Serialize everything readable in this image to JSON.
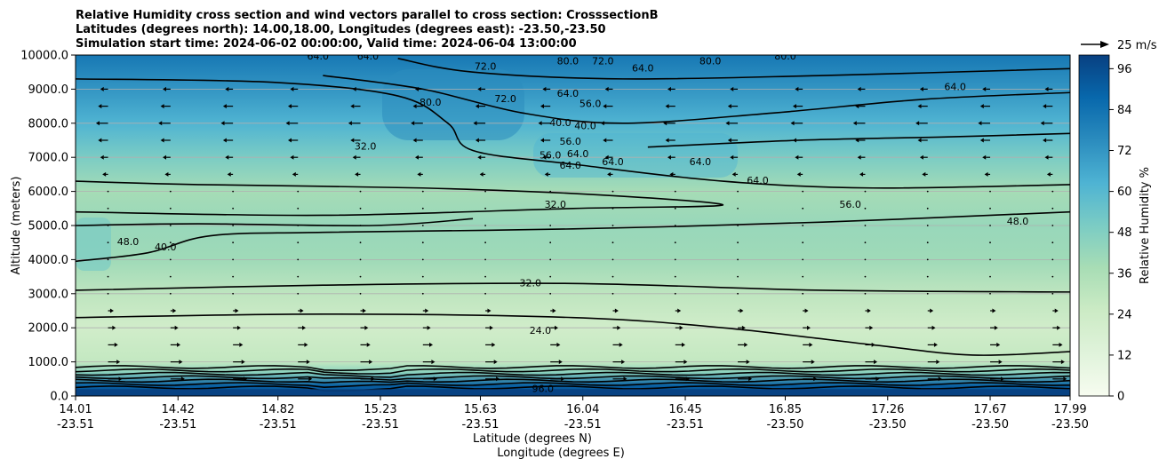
{
  "chart_data": {
    "type": "heatmap",
    "title_lines": [
      "Relative Humidity cross section and wind vectors parallel to cross section: CrosssectionB",
      "Latitudes (degrees north): 14.00,18.00, Longitudes (degrees east): -23.50,-23.50",
      "Simulation start time: 2024-06-02 00:00:00, Valid time: 2024-06-04 13:00:00"
    ],
    "xlabel_lat": "Latitude (degrees N)",
    "xlabel_lon": "Longitude (degrees E)",
    "ylabel": "Altitude (meters)",
    "colorbar_label": "Relative Humidity %",
    "quiver_key": "25 m/s",
    "x_ticks_lat": [
      "14.01",
      "14.42",
      "14.82",
      "15.23",
      "15.63",
      "16.04",
      "16.45",
      "16.85",
      "17.26",
      "17.67",
      "17.99"
    ],
    "x_ticks_lon": [
      "-23.51",
      "-23.51",
      "-23.51",
      "-23.51",
      "-23.51",
      "-23.51",
      "-23.51",
      "-23.50",
      "-23.50",
      "-23.50",
      "-23.50"
    ],
    "y_ticks": [
      "0.0",
      "1000.0",
      "2000.0",
      "3000.0",
      "4000.0",
      "5000.0",
      "6000.0",
      "7000.0",
      "8000.0",
      "9000.0",
      "10000.0"
    ],
    "ylim": [
      0,
      10000
    ],
    "colorbar_ticks": [
      "0",
      "12",
      "24",
      "36",
      "48",
      "60",
      "72",
      "84",
      "96"
    ],
    "colorbar_range": [
      0,
      100
    ],
    "grid": "horizontal",
    "colors": [
      "#f7fcf0",
      "#e0f3db",
      "#ccebc5",
      "#a8ddb5",
      "#7bccc4",
      "#4eb3d3",
      "#2b8cbe",
      "#0868ac",
      "#084081"
    ],
    "humidity_profile": [
      {
        "alt": 0,
        "rh": 96
      },
      {
        "alt": 300,
        "rh": 90
      },
      {
        "alt": 700,
        "rh": 45
      },
      {
        "alt": 1000,
        "rh": 28
      },
      {
        "alt": 2000,
        "rh": 22
      },
      {
        "alt": 3000,
        "rh": 30
      },
      {
        "alt": 4000,
        "rh": 40
      },
      {
        "alt": 5000,
        "rh": 42
      },
      {
        "alt": 6000,
        "rh": 38
      },
      {
        "alt": 7000,
        "rh": 50
      },
      {
        "alt": 8000,
        "rh": 62
      },
      {
        "alt": 9000,
        "rh": 72
      },
      {
        "alt": 10000,
        "rh": 82
      }
    ],
    "contour_labels": [
      {
        "text": "64.0",
        "lat": 14.98,
        "alt": 9950
      },
      {
        "text": "64.0",
        "lat": 15.18,
        "alt": 9950
      },
      {
        "text": "72.0",
        "lat": 15.65,
        "alt": 9650
      },
      {
        "text": "80.0",
        "lat": 15.98,
        "alt": 9800
      },
      {
        "text": "72.0",
        "lat": 16.12,
        "alt": 9800
      },
      {
        "text": "64.0",
        "lat": 16.28,
        "alt": 9600
      },
      {
        "text": "80.0",
        "lat": 16.55,
        "alt": 9800
      },
      {
        "text": "80.0",
        "lat": 16.85,
        "alt": 9950
      },
      {
        "text": "64.0",
        "lat": 17.53,
        "alt": 9050
      },
      {
        "text": "80.0",
        "lat": 15.43,
        "alt": 8600
      },
      {
        "text": "72.0",
        "lat": 15.73,
        "alt": 8700
      },
      {
        "text": "64.0",
        "lat": 15.98,
        "alt": 8850
      },
      {
        "text": "56.0",
        "lat": 16.07,
        "alt": 8550
      },
      {
        "text": "40.0",
        "lat": 15.95,
        "alt": 8000
      },
      {
        "text": "40.0",
        "lat": 16.05,
        "alt": 7900
      },
      {
        "text": "56.0",
        "lat": 15.99,
        "alt": 7450
      },
      {
        "text": "32.0",
        "lat": 15.17,
        "alt": 7300
      },
      {
        "text": "56.0",
        "lat": 15.91,
        "alt": 7050
      },
      {
        "text": "64.0",
        "lat": 16.02,
        "alt": 7080
      },
      {
        "text": "64.0",
        "lat": 15.99,
        "alt": 6750
      },
      {
        "text": "64.0",
        "lat": 16.16,
        "alt": 6850
      },
      {
        "text": "64.0",
        "lat": 16.51,
        "alt": 6850
      },
      {
        "text": "64.0",
        "lat": 16.74,
        "alt": 6300
      },
      {
        "text": "32.0",
        "lat": 15.93,
        "alt": 5600
      },
      {
        "text": "56.0",
        "lat": 17.11,
        "alt": 5600
      },
      {
        "text": "48.0",
        "lat": 17.78,
        "alt": 5100
      },
      {
        "text": "48.0",
        "lat": 14.22,
        "alt": 4500
      },
      {
        "text": "40.0",
        "lat": 14.37,
        "alt": 4350
      },
      {
        "text": "32.0",
        "lat": 15.83,
        "alt": 3300
      },
      {
        "text": "24.0",
        "lat": 15.87,
        "alt": 1900
      },
      {
        "text": "96.0",
        "lat": 15.88,
        "alt": 200
      }
    ],
    "contour_lines": [
      {
        "value": 24,
        "points": [
          [
            14.01,
            2300
          ],
          [
            15.0,
            2400
          ],
          [
            16.0,
            2300
          ],
          [
            16.6,
            2000
          ],
          [
            17.2,
            1500
          ],
          [
            17.6,
            1200
          ],
          [
            17.99,
            1300
          ]
        ]
      },
      {
        "value": 32,
        "points": [
          [
            14.01,
            3100
          ],
          [
            15.0,
            3250
          ],
          [
            16.0,
            3300
          ],
          [
            17.0,
            3100
          ],
          [
            17.99,
            3050
          ]
        ]
      },
      {
        "value": 32,
        "points": [
          [
            14.01,
            5400
          ],
          [
            15.0,
            5300
          ],
          [
            16.0,
            5500
          ],
          [
            16.6,
            5600
          ],
          [
            16.1,
            5900
          ],
          [
            15.4,
            6100
          ],
          [
            14.5,
            6200
          ],
          [
            14.01,
            6300
          ]
        ]
      },
      {
        "value": 40,
        "points": [
          [
            14.01,
            3950
          ],
          [
            14.3,
            4200
          ],
          [
            14.55,
            4700
          ],
          [
            15.0,
            4800
          ],
          [
            16.0,
            4900
          ],
          [
            17.0,
            5100
          ],
          [
            17.99,
            5400
          ]
        ]
      },
      {
        "value": 48,
        "points": [
          [
            14.01,
            5000
          ],
          [
            14.5,
            5050
          ],
          [
            15.2,
            5000
          ],
          [
            15.6,
            5200
          ]
        ]
      },
      {
        "value": 56,
        "points": [
          [
            14.01,
            9300
          ],
          [
            14.8,
            9200
          ],
          [
            15.3,
            8800
          ],
          [
            15.5,
            8000
          ],
          [
            15.6,
            7200
          ],
          [
            16.0,
            6800
          ],
          [
            16.6,
            6300
          ],
          [
            17.2,
            6100
          ],
          [
            17.99,
            6200
          ]
        ]
      },
      {
        "value": 64,
        "points": [
          [
            15.0,
            9400
          ],
          [
            15.4,
            9000
          ],
          [
            15.8,
            8300
          ],
          [
            16.2,
            8000
          ],
          [
            16.8,
            8300
          ],
          [
            17.4,
            8700
          ],
          [
            17.99,
            8900
          ]
        ]
      },
      {
        "value": 72,
        "points": [
          [
            15.3,
            9900
          ],
          [
            15.6,
            9500
          ],
          [
            16.2,
            9300
          ],
          [
            17.0,
            9400
          ],
          [
            17.99,
            9600
          ]
        ]
      },
      {
        "value": 56,
        "points": [
          [
            16.3,
            7300
          ],
          [
            16.9,
            7500
          ],
          [
            17.5,
            7600
          ],
          [
            17.99,
            7700
          ]
        ]
      }
    ],
    "wind_vectors": {
      "rows_alt": [
        500,
        1000,
        1500,
        2000,
        2500,
        3000,
        3500,
        4000,
        4500,
        5000,
        5500,
        6000,
        6500,
        7000,
        7500,
        8000,
        8500,
        9000
      ],
      "cols_lat": [
        14.14,
        14.39,
        14.64,
        14.9,
        15.15,
        15.4,
        15.65,
        15.91,
        16.16,
        16.41,
        16.66,
        16.92,
        17.17,
        17.42,
        17.67,
        17.92
      ],
      "u_by_row": [
        5,
        4,
        3,
        2,
        1,
        0.5,
        0.3,
        0.2,
        0.2,
        0.2,
        0.2,
        -0.3,
        -1,
        -2,
        -3,
        -4,
        -3,
        -2
      ]
    }
  }
}
